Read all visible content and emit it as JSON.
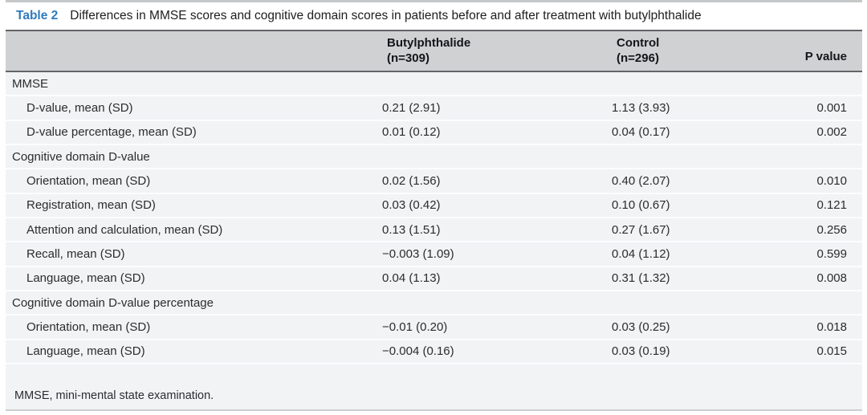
{
  "accent_blue": "#2e7bbd",
  "title": {
    "label": "Table 2",
    "text": "Differences in MMSE scores and cognitive domain scores in patients before and after treatment with butylphthalide"
  },
  "columns": {
    "group1_name": "Butylphthalide",
    "group1_n": "(n=309)",
    "group2_name": "Control",
    "group2_n": "(n=296)",
    "pvalue": "P value"
  },
  "rows": [
    {
      "type": "section",
      "label": "MMSE"
    },
    {
      "type": "data",
      "label": "D-value, mean (SD)",
      "butylphthalide": "0.21 (2.91)",
      "control": "1.13 (3.93)",
      "p": "0.001"
    },
    {
      "type": "data",
      "label": "D-value percentage, mean (SD)",
      "butylphthalide": "0.01 (0.12)",
      "control": "0.04 (0.17)",
      "p": "0.002"
    },
    {
      "type": "section",
      "label": "Cognitive domain D-value"
    },
    {
      "type": "data",
      "label": "Orientation, mean (SD)",
      "butylphthalide": "0.02 (1.56)",
      "control": "0.40 (2.07)",
      "p": "0.010"
    },
    {
      "type": "data",
      "label": "Registration, mean (SD)",
      "butylphthalide": "0.03 (0.42)",
      "control": "0.10 (0.67)",
      "p": "0.121"
    },
    {
      "type": "data",
      "label": "Attention and calculation, mean (SD)",
      "butylphthalide": "0.13 (1.51)",
      "control": "0.27 (1.67)",
      "p": "0.256"
    },
    {
      "type": "data",
      "label": "Recall, mean (SD)",
      "butylphthalide": "−0.003 (1.09)",
      "control": "0.04 (1.12)",
      "p": "0.599"
    },
    {
      "type": "data",
      "label": "Language, mean (SD)",
      "butylphthalide": "0.04 (1.13)",
      "control": "0.31 (1.32)",
      "p": "0.008"
    },
    {
      "type": "section",
      "label": "Cognitive domain D-value percentage"
    },
    {
      "type": "data",
      "label": "Orientation, mean (SD)",
      "butylphthalide": "−0.01 (0.20)",
      "control": "0.03 (0.25)",
      "p": "0.018"
    },
    {
      "type": "data",
      "label": "Language, mean (SD)",
      "butylphthalide": "−0.004 (0.16)",
      "control": "0.03 (0.19)",
      "p": "0.015"
    }
  ],
  "footnote": "MMSE, mini-mental state examination."
}
